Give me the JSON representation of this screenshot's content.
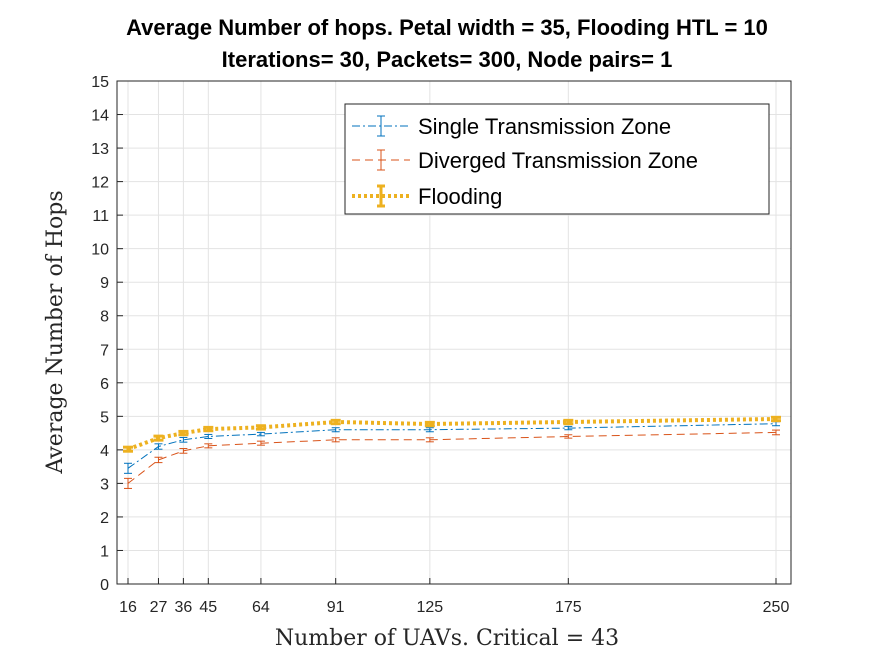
{
  "chart_data": {
    "type": "line",
    "title_lines": [
      "Average Number of hops. Petal width = 35, Flooding HTL = 10",
      "Iterations= 30, Packets= 300, Node pairs= 1"
    ],
    "xlabel": "Number of UAVs. Critical = 43",
    "ylabel": "Average Number of Hops",
    "x": [
      16,
      27,
      36,
      45,
      64,
      91,
      125,
      175,
      250
    ],
    "xticks": [
      16,
      27,
      36,
      45,
      64,
      91,
      125,
      175,
      250
    ],
    "xtick_labels": [
      "16",
      "27",
      "36",
      "45",
      "64",
      "91",
      "125",
      "175",
      "250"
    ],
    "xlim": [
      10,
      260
    ],
    "ylim": [
      0,
      15
    ],
    "yticks": [
      0,
      1,
      2,
      3,
      4,
      5,
      6,
      7,
      8,
      9,
      10,
      11,
      12,
      13,
      14,
      15
    ],
    "grid": true,
    "legend_position": "top-right",
    "series": [
      {
        "name": "Single Transmission Zone",
        "color": "#0072BD",
        "style": "dash-dot",
        "values": [
          3.45,
          4.1,
          4.3,
          4.4,
          4.47,
          4.6,
          4.6,
          4.65,
          4.78
        ],
        "errors": [
          0.15,
          0.08,
          0.07,
          0.06,
          0.05,
          0.06,
          0.06,
          0.05,
          0.06
        ]
      },
      {
        "name": "Diverged Transmission Zone",
        "color": "#D95319",
        "style": "dashed",
        "values": [
          3.0,
          3.7,
          3.97,
          4.12,
          4.2,
          4.3,
          4.3,
          4.4,
          4.52
        ],
        "errors": [
          0.15,
          0.08,
          0.07,
          0.06,
          0.06,
          0.06,
          0.06,
          0.05,
          0.07
        ]
      },
      {
        "name": "Flooding",
        "color": "#EDB120",
        "style": "dotted-thick",
        "values": [
          4.02,
          4.35,
          4.5,
          4.62,
          4.67,
          4.83,
          4.77,
          4.83,
          4.92
        ],
        "errors": [
          0.06,
          0.06,
          0.05,
          0.05,
          0.05,
          0.05,
          0.05,
          0.05,
          0.05
        ]
      }
    ]
  }
}
